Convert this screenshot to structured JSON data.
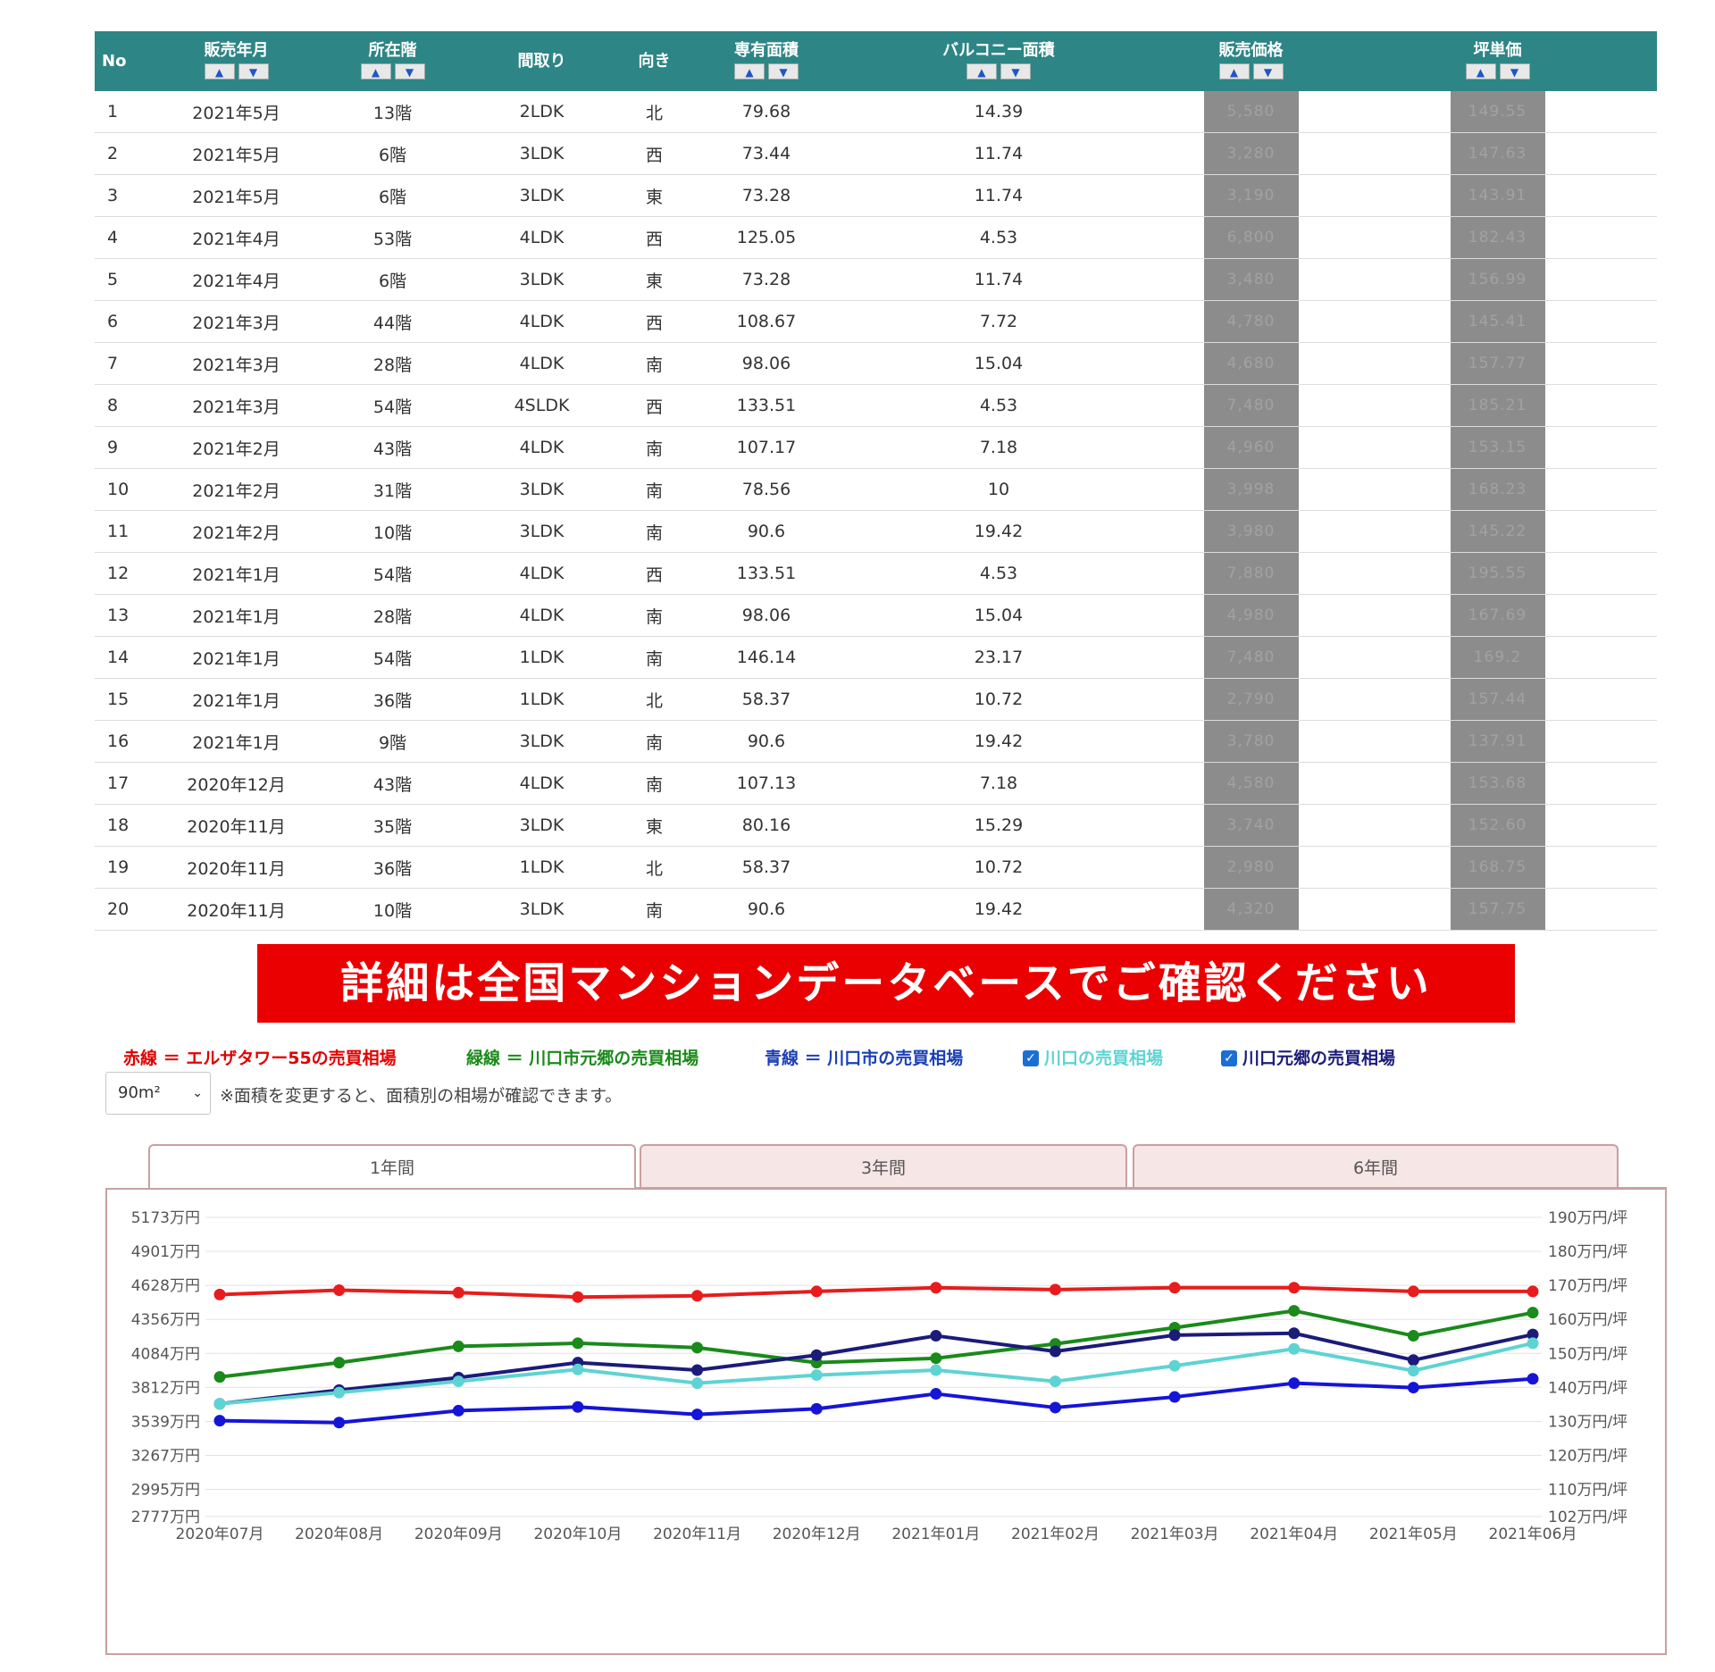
{
  "table": {
    "headers": {
      "no": "No",
      "date": "販売年月",
      "floor": "所在階",
      "layout": "間取り",
      "direction": "向き",
      "area": "専有面積",
      "balcony": "バルコニー面積",
      "price": "販売価格",
      "unit_price": "坪単価",
      "sort_up": "▲",
      "sort_down": "▼"
    },
    "rows": [
      {
        "no": "1",
        "date": "2021年5月",
        "floor": "13階",
        "layout": "2LDK",
        "direction": "北",
        "area": "79.68",
        "balcony": "14.39",
        "price": "5,580",
        "unit_price": "149.55"
      },
      {
        "no": "2",
        "date": "2021年5月",
        "floor": "6階",
        "layout": "3LDK",
        "direction": "西",
        "area": "73.44",
        "balcony": "11.74",
        "price": "3,280",
        "unit_price": "147.63"
      },
      {
        "no": "3",
        "date": "2021年5月",
        "floor": "6階",
        "layout": "3LDK",
        "direction": "東",
        "area": "73.28",
        "balcony": "11.74",
        "price": "3,190",
        "unit_price": "143.91"
      },
      {
        "no": "4",
        "date": "2021年4月",
        "floor": "53階",
        "layout": "4LDK",
        "direction": "西",
        "area": "125.05",
        "balcony": "4.53",
        "price": "6,800",
        "unit_price": "182.43"
      },
      {
        "no": "5",
        "date": "2021年4月",
        "floor": "6階",
        "layout": "3LDK",
        "direction": "東",
        "area": "73.28",
        "balcony": "11.74",
        "price": "3,480",
        "unit_price": "156.99"
      },
      {
        "no": "6",
        "date": "2021年3月",
        "floor": "44階",
        "layout": "4LDK",
        "direction": "西",
        "area": "108.67",
        "balcony": "7.72",
        "price": "4,780",
        "unit_price": "145.41"
      },
      {
        "no": "7",
        "date": "2021年3月",
        "floor": "28階",
        "layout": "4LDK",
        "direction": "南",
        "area": "98.06",
        "balcony": "15.04",
        "price": "4,680",
        "unit_price": "157.77"
      },
      {
        "no": "8",
        "date": "2021年3月",
        "floor": "54階",
        "layout": "4SLDK",
        "direction": "西",
        "area": "133.51",
        "balcony": "4.53",
        "price": "7,480",
        "unit_price": "185.21"
      },
      {
        "no": "9",
        "date": "2021年2月",
        "floor": "43階",
        "layout": "4LDK",
        "direction": "南",
        "area": "107.17",
        "balcony": "7.18",
        "price": "4,960",
        "unit_price": "153.15"
      },
      {
        "no": "10",
        "date": "2021年2月",
        "floor": "31階",
        "layout": "3LDK",
        "direction": "南",
        "area": "78.56",
        "balcony": "10",
        "price": "3,998",
        "unit_price": "168.23"
      },
      {
        "no": "11",
        "date": "2021年2月",
        "floor": "10階",
        "layout": "3LDK",
        "direction": "南",
        "area": "90.6",
        "balcony": "19.42",
        "price": "3,980",
        "unit_price": "145.22"
      },
      {
        "no": "12",
        "date": "2021年1月",
        "floor": "54階",
        "layout": "4LDK",
        "direction": "西",
        "area": "133.51",
        "balcony": "4.53",
        "price": "7,880",
        "unit_price": "195.55"
      },
      {
        "no": "13",
        "date": "2021年1月",
        "floor": "28階",
        "layout": "4LDK",
        "direction": "南",
        "area": "98.06",
        "balcony": "15.04",
        "price": "4,980",
        "unit_price": "167.69"
      },
      {
        "no": "14",
        "date": "2021年1月",
        "floor": "54階",
        "layout": "1LDK",
        "direction": "南",
        "area": "146.14",
        "balcony": "23.17",
        "price": "7,480",
        "unit_price": "169.2"
      },
      {
        "no": "15",
        "date": "2021年1月",
        "floor": "36階",
        "layout": "1LDK",
        "direction": "北",
        "area": "58.37",
        "balcony": "10.72",
        "price": "2,790",
        "unit_price": "157.44"
      },
      {
        "no": "16",
        "date": "2021年1月",
        "floor": "9階",
        "layout": "3LDK",
        "direction": "南",
        "area": "90.6",
        "balcony": "19.42",
        "price": "3,780",
        "unit_price": "137.91"
      },
      {
        "no": "17",
        "date": "2020年12月",
        "floor": "43階",
        "layout": "4LDK",
        "direction": "南",
        "area": "107.13",
        "balcony": "7.18",
        "price": "4,580",
        "unit_price": "153.68"
      },
      {
        "no": "18",
        "date": "2020年11月",
        "floor": "35階",
        "layout": "3LDK",
        "direction": "東",
        "area": "80.16",
        "balcony": "15.29",
        "price": "3,740",
        "unit_price": "152.60"
      },
      {
        "no": "19",
        "date": "2020年11月",
        "floor": "36階",
        "layout": "1LDK",
        "direction": "北",
        "area": "58.37",
        "balcony": "10.72",
        "price": "2,980",
        "unit_price": "168.75"
      },
      {
        "no": "20",
        "date": "2020年11月",
        "floor": "10階",
        "layout": "3LDK",
        "direction": "南",
        "area": "90.6",
        "balcony": "19.42",
        "price": "4,320",
        "unit_price": "157.75"
      }
    ]
  },
  "banner": {
    "text": "詳細は全国マンションデータベースでご確認ください"
  },
  "legend": {
    "red": "赤線 ＝ エルザタワー55の売買相場",
    "green": "緑線 ＝ 川口市元郷の売買相場",
    "blue": "青線 ＝ 川口市の売買相場",
    "check1": "川口の売買相場",
    "check2": "川口元郷の売買相場",
    "check_mark": "✓"
  },
  "area_select": {
    "value": "90m²",
    "arrow": "⌄"
  },
  "note": "※面積を変更すると、面積別の相場が確認できます。",
  "tabs": [
    {
      "label": "1年間",
      "active": true
    },
    {
      "label": "3年間",
      "active": false
    },
    {
      "label": "6年間",
      "active": false
    }
  ],
  "chart_data": {
    "type": "line",
    "x": [
      "2020年07月",
      "2020年08月",
      "2020年09月",
      "2020年10月",
      "2020年11月",
      "2020年12月",
      "2021年01月",
      "2021年02月",
      "2021年03月",
      "2021年04月",
      "2021年05月",
      "2021年06月"
    ],
    "y_left_ticks": [
      "5173万円",
      "4901万円",
      "4628万円",
      "4356万円",
      "4084万円",
      "3812万円",
      "3539万円",
      "3267万円",
      "2995万円",
      "2777万円"
    ],
    "y_left_tick_values": [
      5173,
      4901,
      4628,
      4356,
      4084,
      3812,
      3539,
      3267,
      2995,
      2777
    ],
    "y_right_ticks": [
      "190万円/坪",
      "180万円/坪",
      "170万円/坪",
      "160万円/坪",
      "150万円/坪",
      "140万円/坪",
      "130万円/坪",
      "120万円/坪",
      "110万円/坪",
      "102万円/坪"
    ],
    "ylim": [
      2777,
      5173
    ],
    "grid": true,
    "series": [
      {
        "color": "#e81c1c",
        "values": [
          4555,
          4590,
          4570,
          4535,
          4545,
          4580,
          4610,
          4595,
          4610,
          4610,
          4580,
          4580
        ]
      },
      {
        "color": "#1a8a1a",
        "values": [
          3895,
          4010,
          4140,
          4165,
          4130,
          4010,
          4045,
          4160,
          4290,
          4425,
          4225,
          4410
        ]
      },
      {
        "color": "#1b1b7a",
        "values": [
          3680,
          3790,
          3890,
          4010,
          3950,
          4070,
          4225,
          4100,
          4230,
          4245,
          4030,
          4235
        ]
      },
      {
        "color": "#5ed3d3",
        "values": [
          3680,
          3770,
          3860,
          3955,
          3845,
          3910,
          3950,
          3860,
          3985,
          4120,
          3945,
          4165
        ]
      },
      {
        "color": "#1515d8",
        "values": [
          3545,
          3530,
          3625,
          3655,
          3595,
          3640,
          3760,
          3650,
          3735,
          3845,
          3810,
          3880
        ]
      }
    ]
  }
}
